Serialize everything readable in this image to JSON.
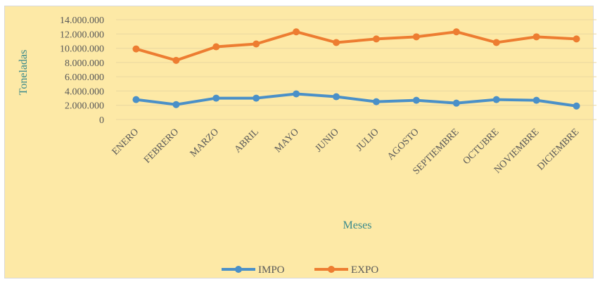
{
  "chart_data": {
    "type": "line",
    "categories": [
      "ENERO",
      "FEBRERO",
      "MARZO",
      "ABRIL",
      "MAYO",
      "JUNIO",
      "JULIO",
      "AGOSTO",
      "SEPTIEMBRE",
      "OCTUBRE",
      "NOVIEMBRE",
      "DICIEMBRE"
    ],
    "series": [
      {
        "name": "IMPO",
        "color": "#4a90c8",
        "values": [
          2800000,
          2100000,
          3000000,
          3000000,
          3600000,
          3200000,
          2500000,
          2700000,
          2300000,
          2800000,
          2700000,
          1900000
        ]
      },
      {
        "name": "EXPO",
        "color": "#ed7d31",
        "values": [
          9900000,
          8300000,
          10200000,
          10600000,
          12300000,
          10800000,
          11300000,
          11600000,
          12300000,
          10800000,
          11600000,
          11300000
        ]
      }
    ],
    "y_ticks": [
      "0",
      "2.000.000",
      "4.000.000",
      "6.000.000",
      "8.000.000",
      "10.000.000",
      "12.000.000",
      "14.000.000"
    ],
    "y_tick_values": [
      0,
      2000000,
      4000000,
      6000000,
      8000000,
      10000000,
      12000000,
      14000000
    ],
    "ylim": [
      0,
      14000000
    ],
    "xlabel": "Meses",
    "ylabel": "Toneladas",
    "title": "",
    "grid": true,
    "legend": "bottom"
  }
}
